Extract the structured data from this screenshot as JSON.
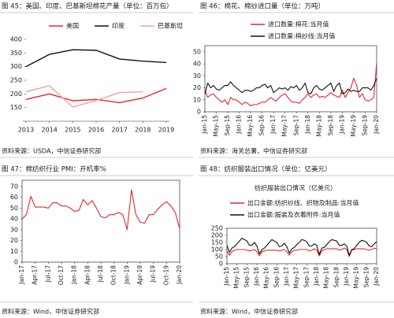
{
  "chart_data": [
    {
      "type": "line",
      "title": "图 45：美国、印度、巴基斯坦棉花产量（单位：百万包）",
      "source": "资料来源：USDA，中信证券研究部",
      "categories": [
        "2013",
        "2014",
        "2015",
        "2016",
        "2017",
        "2018",
        "2019"
      ],
      "series": [
        {
          "name": "美国",
          "color": "#e0282e",
          "values": [
            180,
            200,
            175,
            180,
            168,
            185,
            220
          ]
        },
        {
          "name": "印度",
          "color": "#111111",
          "values": [
            300,
            345,
            362,
            360,
            328,
            320,
            315
          ]
        },
        {
          "name": "巴基斯坦",
          "color": "#f4a0a6",
          "values": [
            208,
            230,
            152,
            176,
            205,
            208,
            null
          ]
        }
      ],
      "ylim": [
        100,
        400
      ],
      "yticks": [
        150,
        200,
        250,
        300,
        350,
        400
      ],
      "grid": false
    },
    {
      "type": "line",
      "title": "图 46：棉花、棉纱进口量（单位：万吨）",
      "source": "资料来源：海关总署，中信证券研究部",
      "categories": [
        "Jan-15",
        null,
        null,
        null,
        "May-15",
        null,
        null,
        null,
        "Sep-15",
        null,
        null,
        null,
        "Jan-16",
        null,
        null,
        null,
        "May-16",
        null,
        null,
        null,
        "Sep-16",
        null,
        null,
        null,
        "Jan-17",
        null,
        null,
        null,
        "May-17",
        null,
        null,
        null,
        "Sep-17",
        null,
        null,
        null,
        "Jan-18",
        null,
        null,
        null,
        "May-18",
        null,
        null,
        null,
        "Sep-18",
        null,
        null,
        null,
        "Jan-19",
        null,
        null,
        null,
        "May-19",
        null,
        null,
        null,
        "Sep-19",
        null,
        null,
        null,
        "Jan-20"
      ],
      "series": [
        {
          "name": "进口数量:棉花:当月值",
          "color": "#e0282e",
          "values": [
            18,
            12,
            14,
            15,
            12,
            10,
            8,
            10,
            6,
            12,
            10,
            10,
            8,
            6,
            8,
            7,
            5,
            6,
            6,
            7,
            8,
            8,
            10,
            12,
            10,
            9,
            12,
            14,
            15,
            12,
            9,
            8,
            8,
            7,
            10,
            12,
            15,
            12,
            14,
            15,
            12,
            13,
            12,
            14,
            16,
            14,
            13,
            12,
            18,
            12,
            16,
            20,
            28,
            22,
            12,
            15,
            10,
            9,
            10,
            12,
            41
          ]
        },
        {
          "name": "进口数量:棉纱线:当月值",
          "color": "#111111",
          "values": [
            15,
            24,
            20,
            22,
            19,
            18,
            20,
            22,
            22,
            25,
            22,
            20,
            18,
            16,
            18,
            18,
            17,
            18,
            20,
            20,
            22,
            23,
            20,
            22,
            16,
            18,
            20,
            19,
            20,
            18,
            21,
            20,
            22,
            18,
            20,
            24,
            16,
            15,
            20,
            22,
            19,
            18,
            20,
            22,
            24,
            17,
            22,
            24,
            15,
            16,
            19,
            17,
            18,
            17,
            17,
            20,
            20,
            20,
            18,
            22,
            28
          ]
        }
      ],
      "ylim": [
        0,
        50
      ],
      "yticks": [
        0,
        10,
        20,
        30,
        40,
        50
      ],
      "grid": false
    },
    {
      "type": "line",
      "title": "图 47：棉纺织行业 PMI：开机率%",
      "source": "资料来源：Wind，中信证券研究部",
      "categories": [
        "Jan-17",
        null,
        null,
        "Apr-17",
        null,
        null,
        "Jul-17",
        null,
        null,
        "Oct-17",
        null,
        null,
        "Jan-18",
        null,
        null,
        "Apr-18",
        null,
        null,
        "Jul-18",
        null,
        null,
        "Oct-18",
        null,
        null,
        "Jan-19",
        null,
        null,
        "Apr-19",
        null,
        null,
        "Jul-19",
        null,
        null,
        "Oct-19",
        null,
        null,
        "Jan-20"
      ],
      "series": [
        {
          "name": null,
          "color": "#e0282e",
          "values": [
            40,
            44,
            61,
            51,
            51,
            51,
            50,
            55,
            55,
            52,
            52,
            50,
            47,
            48,
            58,
            53,
            57,
            50,
            42,
            41,
            44,
            44,
            46,
            44,
            30,
            67,
            44,
            37,
            36,
            44,
            44,
            49,
            53,
            56,
            52,
            46,
            31
          ]
        }
      ],
      "ylim": [
        0,
        70
      ],
      "yticks": [
        0,
        10,
        20,
        30,
        40,
        50,
        60,
        70
      ],
      "grid": false
    },
    {
      "type": "line",
      "title": "图 48：纺织服装出口情况（单位：亿美元）",
      "subtitle": "纺织服装出口情况（亿美元）",
      "source": "资料来源：Wind，中信证券研究部",
      "categories": [
        "Jan-15",
        null,
        null,
        null,
        "May-15",
        null,
        null,
        null,
        "Sep-15",
        null,
        null,
        null,
        "Jan-16",
        null,
        null,
        null,
        "May-16",
        null,
        null,
        null,
        "Sep-16",
        null,
        null,
        null,
        "Jan-17",
        null,
        null,
        null,
        "May-17",
        null,
        null,
        null,
        "Sep-17",
        null,
        null,
        null,
        "Jan-18",
        null,
        null,
        null,
        "May-18",
        null,
        null,
        null,
        "Sep-18",
        null,
        null,
        null,
        "Jan-19",
        null,
        null,
        null,
        "May-19",
        null,
        null,
        null,
        "Sep-19",
        null,
        null,
        null,
        "Jan-20"
      ],
      "series": [
        {
          "name": "出口金额:纺织纱线、织物及制品:当月值",
          "color": "#e0282e",
          "values": [
            90,
            60,
            85,
            95,
            100,
            100,
            100,
            100,
            95,
            90,
            95,
            100,
            85,
            55,
            85,
            90,
            95,
            95,
            95,
            95,
            95,
            90,
            95,
            100,
            85,
            60,
            85,
            95,
            95,
            100,
            100,
            100,
            100,
            90,
            95,
            105,
            95,
            55,
            90,
            100,
            105,
            105,
            105,
            105,
            105,
            95,
            100,
            110,
            100,
            50,
            95,
            100,
            105,
            105,
            105,
            105,
            100,
            95,
            100,
            110,
            105
          ]
        },
        {
          "name": "出口金额:服装及衣着附件:当月值",
          "color": "#111111",
          "values": [
            130,
            80,
            110,
            120,
            140,
            160,
            180,
            170,
            160,
            130,
            130,
            150,
            125,
            70,
            100,
            110,
            130,
            150,
            170,
            160,
            150,
            120,
            125,
            145,
            120,
            75,
            105,
            115,
            135,
            150,
            170,
            165,
            155,
            125,
            125,
            140,
            130,
            65,
            110,
            115,
            135,
            155,
            170,
            165,
            160,
            130,
            130,
            140,
            125,
            60,
            100,
            105,
            130,
            150,
            165,
            160,
            150,
            125,
            120,
            140,
            155
          ]
        }
      ],
      "ylim": [
        0,
        250
      ],
      "yticks": [
        0,
        50,
        100,
        150,
        200,
        250
      ],
      "grid": false
    }
  ]
}
